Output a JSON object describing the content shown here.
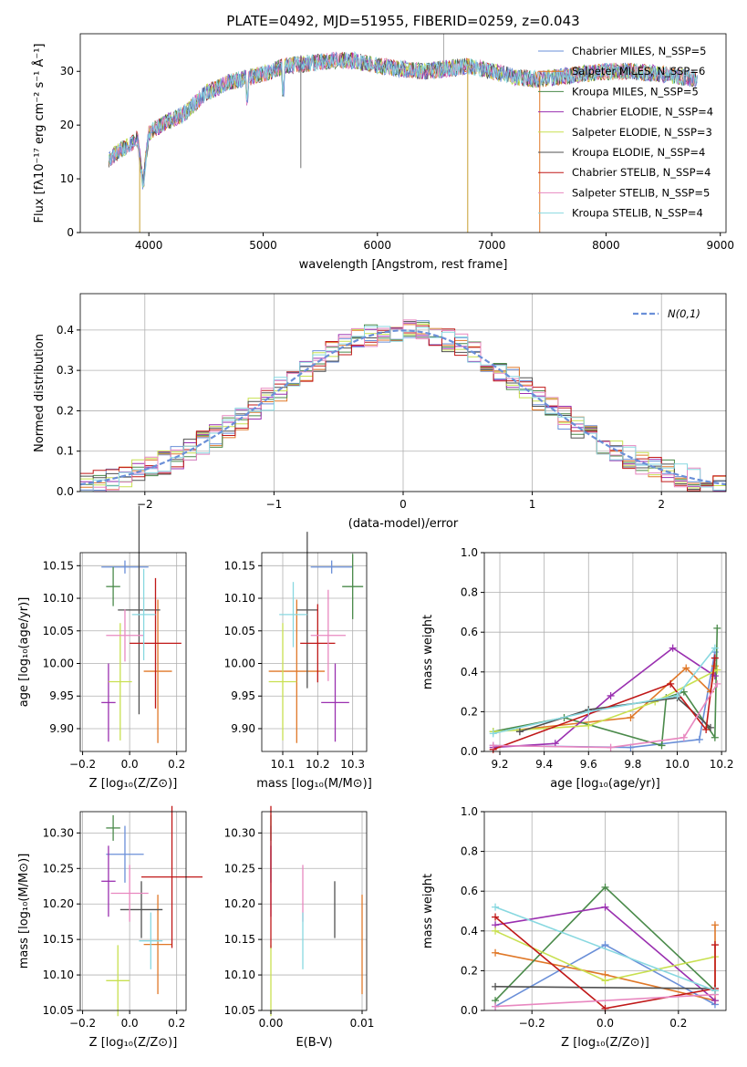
{
  "colors": [
    "#6a8fd8",
    "#e07828",
    "#4a8a4a",
    "#9a30b0",
    "#c8e050",
    "#505050",
    "#c01818",
    "#e888c0",
    "#88d8e0"
  ],
  "spectrum": {
    "title": "PLATE=0492, MJD=51955, FIBERID=0259, z=0.043",
    "xlabel": "wavelength [Angstrom, rest frame]",
    "ylabel": "Flux [fλ10⁻¹⁷ erg cm⁻² s⁻¹ Å⁻¹]",
    "xticks": [
      "4000",
      "5000",
      "6000",
      "7000",
      "8000",
      "9000"
    ],
    "yticks": [
      "0",
      "10",
      "20",
      "30"
    ],
    "legend": [
      "Chabrier MILES, N_SSP=5",
      "Salpeter MILES, N_SSP=6",
      "Kroupa MILES, N_SSP=5",
      "Chabrier ELODIE, N_SSP=4",
      "Salpeter ELODIE, N_SSP=3",
      "Kroupa ELODIE, N_SSP=4",
      "Chabrier STELIB, N_SSP=4",
      "Salpeter STELIB, N_SSP=5",
      "Kroupa STELIB, N_SSP=4"
    ]
  },
  "residuals": {
    "xlabel": "(data-model)/error",
    "ylabel": "Normed distribution",
    "xticks": [
      "−2",
      "−1",
      "0",
      "1",
      "2"
    ],
    "yticks": [
      "0.0",
      "0.1",
      "0.2",
      "0.3",
      "0.4"
    ],
    "legend": "N(0,1)"
  },
  "panels": {
    "age_vs_Z": {
      "xlabel": "Z [log₁₀(Z/Z⊙)]",
      "ylabel": "age  [log₁₀(age/yr)]",
      "xticks": [
        "−0.2",
        "0.0",
        "0.2"
      ],
      "yticks": [
        "9.90",
        "9.95",
        "10.00",
        "10.05",
        "10.10",
        "10.15"
      ]
    },
    "age_vs_mass": {
      "xlabel": "mass [log₁₀(M/M⊙)]",
      "ylabel": "",
      "xticks": [
        "10.1",
        "10.2",
        "10.3"
      ],
      "yticks": [
        "9.90",
        "9.95",
        "10.00",
        "10.05",
        "10.10",
        "10.15"
      ]
    },
    "weight_vs_age": {
      "xlabel": "age  [log₁₀(age/yr)]",
      "ylabel": "mass weight",
      "xticks": [
        "9.2",
        "9.4",
        "9.6",
        "9.8",
        "10.0",
        "10.2"
      ],
      "yticks": [
        "0.0",
        "0.2",
        "0.4",
        "0.6",
        "0.8",
        "1.0"
      ]
    },
    "mass_vs_Z": {
      "xlabel": "Z [log₁₀(Z/Z⊙)]",
      "ylabel": "mass [log₁₀(M/M⊙)]",
      "xticks": [
        "−0.2",
        "0.0",
        "0.2"
      ],
      "yticks": [
        "10.05",
        "10.10",
        "10.15",
        "10.20",
        "10.25",
        "10.30"
      ]
    },
    "mass_vs_ebv": {
      "xlabel": "E(B-V)",
      "ylabel": "",
      "xticks": [
        "0.00",
        "0.01"
      ],
      "yticks": [
        "10.05",
        "10.10",
        "10.15",
        "10.20",
        "10.25",
        "10.30"
      ]
    },
    "weight_vs_Z": {
      "xlabel": "Z [log₁₀(Z/Z⊙)]",
      "ylabel": "mass weight",
      "xticks": [
        "−0.2",
        "0.0",
        "0.2"
      ],
      "yticks": [
        "0.0",
        "0.2",
        "0.4",
        "0.6",
        "0.8",
        "1.0"
      ]
    }
  },
  "chart_data": [
    {
      "type": "line",
      "title": "PLATE=0492, MJD=51955, FIBERID=0259, z=0.043",
      "xlabel": "wavelength [Angstrom, rest frame]",
      "ylabel": "Flux [fλ10⁻¹⁷ erg cm⁻² s⁻¹ Å⁻¹]",
      "xlim": [
        3400,
        9050
      ],
      "ylim": [
        0,
        37
      ],
      "legend_position": "right",
      "series": [
        {
          "name": "Chabrier MILES, N_SSP=5"
        },
        {
          "name": "Salpeter MILES, N_SSP=6"
        },
        {
          "name": "Kroupa MILES, N_SSP=5"
        },
        {
          "name": "Chabrier ELODIE, N_SSP=4"
        },
        {
          "name": "Salpeter ELODIE, N_SSP=3"
        },
        {
          "name": "Kroupa ELODIE, N_SSP=4"
        },
        {
          "name": "Chabrier STELIB, N_SSP=4"
        },
        {
          "name": "Salpeter STELIB, N_SSP=5"
        },
        {
          "name": "Kroupa STELIB, N_SSP=4"
        }
      ],
      "continuum": {
        "x": [
          3650,
          3700,
          3800,
          3900,
          3950,
          4000,
          4100,
          4200,
          4300,
          4400,
          4500,
          4700,
          5000,
          5200,
          5400,
          5600,
          5800,
          6000,
          6200,
          6400,
          6600,
          6800,
          7000,
          7200,
          7400,
          7600,
          7800,
          8000,
          8200,
          8500,
          8800
        ],
        "y": [
          13.5,
          14.5,
          16,
          17.5,
          9,
          18.5,
          20,
          21,
          22,
          24,
          26,
          28,
          29.5,
          31,
          31.5,
          32,
          32,
          31,
          30.5,
          30,
          30.5,
          31,
          30,
          29,
          28.5,
          29,
          29.5,
          30,
          30,
          29.5,
          28.5
        ]
      }
    },
    {
      "type": "bar",
      "xlabel": "(data-model)/error",
      "ylabel": "Normed distribution",
      "xlim": [
        -2.5,
        2.5
      ],
      "ylim": [
        0,
        0.49
      ],
      "histogram_bin_width": 0.1,
      "legend_position": "top-right",
      "reference_curve": {
        "name": "N(0,1)",
        "mean": 0,
        "sigma": 1
      }
    },
    {
      "type": "scatter",
      "xlabel": "Z [log₁₀(Z/Z⊙)]",
      "ylabel": "age  [log₁₀(age/yr)]",
      "xlim": [
        -0.21,
        0.24
      ],
      "ylim": [
        9.865,
        10.17
      ],
      "points": [
        {
          "x": -0.02,
          "y": 10.148,
          "xerr": 0.1,
          "yerr": 0.01
        },
        {
          "x": 0.12,
          "y": 9.988,
          "xerr": 0.06,
          "yerr": 0.11
        },
        {
          "x": -0.07,
          "y": 10.118,
          "xerr": 0.03,
          "yerr": 0.03
        },
        {
          "x": -0.09,
          "y": 9.94,
          "xerr": 0.03,
          "yerr": 0.06
        },
        {
          "x": -0.04,
          "y": 9.972,
          "xerr": 0.05,
          "yerr": 0.09
        },
        {
          "x": 0.04,
          "y": 10.082,
          "xerr": 0.09,
          "yerr": 0.16
        },
        {
          "x": 0.11,
          "y": 10.031,
          "xerr": 0.11,
          "yerr": 0.1
        },
        {
          "x": -0.02,
          "y": 10.043,
          "xerr": 0.08,
          "yerr": 0.04
        },
        {
          "x": 0.06,
          "y": 10.075,
          "xerr": 0.05,
          "yerr": 0.07
        }
      ]
    },
    {
      "type": "scatter",
      "xlabel": "mass [log₁₀(M/M⊙)]",
      "ylabel": "",
      "xlim": [
        10.04,
        10.34
      ],
      "ylim": [
        9.865,
        10.17
      ],
      "points": [
        {
          "x": 10.24,
          "y": 10.148,
          "xerr": 0.06,
          "yerr": 0.01
        },
        {
          "x": 10.14,
          "y": 9.988,
          "xerr": 0.08,
          "yerr": 0.11
        },
        {
          "x": 10.3,
          "y": 10.118,
          "xerr": 0.03,
          "yerr": 0.05
        },
        {
          "x": 10.25,
          "y": 9.94,
          "xerr": 0.04,
          "yerr": 0.06
        },
        {
          "x": 10.1,
          "y": 9.972,
          "xerr": 0.04,
          "yerr": 0.09
        },
        {
          "x": 10.17,
          "y": 10.082,
          "xerr": 0.03,
          "yerr": 0.12
        },
        {
          "x": 10.2,
          "y": 10.031,
          "xerr": 0.05,
          "yerr": 0.06
        },
        {
          "x": 10.23,
          "y": 10.043,
          "xerr": 0.05,
          "yerr": 0.07
        },
        {
          "x": 10.13,
          "y": 10.075,
          "xerr": 0.04,
          "yerr": 0.05
        }
      ]
    },
    {
      "type": "line",
      "xlabel": "age  [log₁₀(age/yr)]",
      "ylabel": "mass weight",
      "xlim": [
        9.13,
        10.22
      ],
      "ylim": [
        0,
        1.0
      ],
      "series": [
        {
          "x": [
            9.17,
            9.79,
            10.1,
            10.17
          ],
          "y": [
            0.03,
            0.02,
            0.06,
            0.5
          ]
        },
        {
          "x": [
            9.29,
            9.79,
            10.04,
            10.15,
            10.17
          ],
          "y": [
            0.11,
            0.17,
            0.42,
            0.3,
            0.43
          ]
        },
        {
          "x": [
            9.17,
            9.49,
            9.93,
            9.95,
            10.03,
            10.17,
            10.18
          ],
          "y": [
            0.1,
            0.17,
            0.03,
            0.27,
            0.3,
            0.07,
            0.62
          ]
        },
        {
          "x": [
            9.17,
            9.45,
            9.7,
            9.98,
            10.17
          ],
          "y": [
            0.02,
            0.04,
            0.28,
            0.52,
            0.38
          ]
        },
        {
          "x": [
            9.17,
            9.6,
            9.9,
            10.18
          ],
          "y": [
            0.1,
            0.13,
            0.25,
            0.41
          ]
        },
        {
          "x": [
            9.29,
            9.6,
            10.0,
            10.15
          ],
          "y": [
            0.1,
            0.21,
            0.27,
            0.12
          ]
        },
        {
          "x": [
            9.17,
            9.97,
            10.13,
            10.17
          ],
          "y": [
            0.01,
            0.34,
            0.11,
            0.47
          ]
        },
        {
          "x": [
            9.17,
            9.7,
            10.03,
            10.18
          ],
          "y": [
            0.03,
            0.02,
            0.07,
            0.34
          ]
        },
        {
          "x": [
            9.17,
            9.6,
            10.0,
            10.17
          ],
          "y": [
            0.09,
            0.2,
            0.28,
            0.52
          ]
        }
      ]
    },
    {
      "type": "scatter",
      "xlabel": "Z [log₁₀(Z/Z⊙)]",
      "ylabel": "mass [log₁₀(M/M⊙)]",
      "xlim": [
        -0.21,
        0.24
      ],
      "ylim": [
        10.05,
        10.33
      ],
      "points": [
        {
          "x": -0.02,
          "y": 10.27,
          "xerr": 0.08,
          "yerr": 0.04
        },
        {
          "x": 0.12,
          "y": 10.143,
          "xerr": 0.06,
          "yerr": 0.07
        },
        {
          "x": -0.07,
          "y": 10.307,
          "xerr": 0.03,
          "yerr": 0.018
        },
        {
          "x": -0.09,
          "y": 10.232,
          "xerr": 0.03,
          "yerr": 0.05
        },
        {
          "x": -0.05,
          "y": 10.092,
          "xerr": 0.05,
          "yerr": 0.05
        },
        {
          "x": 0.05,
          "y": 10.192,
          "xerr": 0.09,
          "yerr": 0.04
        },
        {
          "x": 0.18,
          "y": 10.238,
          "xerr": 0.13,
          "yerr": 0.1
        },
        {
          "x": 0.0,
          "y": 10.215,
          "xerr": 0.08,
          "yerr": 0.04
        },
        {
          "x": 0.09,
          "y": 10.148,
          "xerr": 0.05,
          "yerr": 0.04
        }
      ]
    },
    {
      "type": "scatter",
      "xlabel": "E(B-V)",
      "ylabel": "",
      "xlim": [
        -0.001,
        0.0105
      ],
      "ylim": [
        10.05,
        10.33
      ],
      "points": [
        {
          "x": 0.0,
          "y": 10.27,
          "yerr": 0.04
        },
        {
          "x": 0.01,
          "y": 10.143,
          "yerr": 0.07
        },
        {
          "x": 0.0,
          "y": 10.307,
          "yerr": 0.018
        },
        {
          "x": 0.0,
          "y": 10.232,
          "yerr": 0.05
        },
        {
          "x": 0.0,
          "y": 10.092,
          "yerr": 0.05
        },
        {
          "x": 0.007,
          "y": 10.192,
          "yerr": 0.04
        },
        {
          "x": 0.0,
          "y": 10.238,
          "yerr": 0.1
        },
        {
          "x": 0.0035,
          "y": 10.215,
          "yerr": 0.04
        },
        {
          "x": 0.0035,
          "y": 10.148,
          "yerr": 0.04
        }
      ]
    },
    {
      "type": "line",
      "xlabel": "Z [log₁₀(Z/Z⊙)]",
      "ylabel": "mass weight",
      "xlim": [
        -0.33,
        0.33
      ],
      "ylim": [
        0,
        1.0
      ],
      "series": [
        {
          "x": [
            -0.3,
            0.0,
            0.3
          ],
          "y": [
            0.02,
            0.33,
            0.03
          ]
        },
        {
          "x": [
            -0.3,
            0.0,
            0.3,
            0.3
          ],
          "y": [
            0.29,
            0.18,
            0.05,
            0.43
          ]
        },
        {
          "x": [
            -0.3,
            0.0,
            0.3
          ],
          "y": [
            0.05,
            0.62,
            0.1
          ]
        },
        {
          "x": [
            -0.3,
            0.0,
            0.3
          ],
          "y": [
            0.43,
            0.52,
            0.05
          ]
        },
        {
          "x": [
            -0.3,
            0.0,
            0.3
          ],
          "y": [
            0.4,
            0.15,
            0.27
          ]
        },
        {
          "x": [
            -0.3,
            0.3
          ],
          "y": [
            0.12,
            0.11
          ]
        },
        {
          "x": [
            -0.3,
            0.0,
            0.3,
            0.3
          ],
          "y": [
            0.47,
            0.01,
            0.11,
            0.33
          ]
        },
        {
          "x": [
            -0.3,
            0.3
          ],
          "y": [
            0.02,
            0.08
          ]
        },
        {
          "x": [
            -0.3,
            0.3
          ],
          "y": [
            0.52,
            0.1
          ]
        }
      ]
    }
  ]
}
